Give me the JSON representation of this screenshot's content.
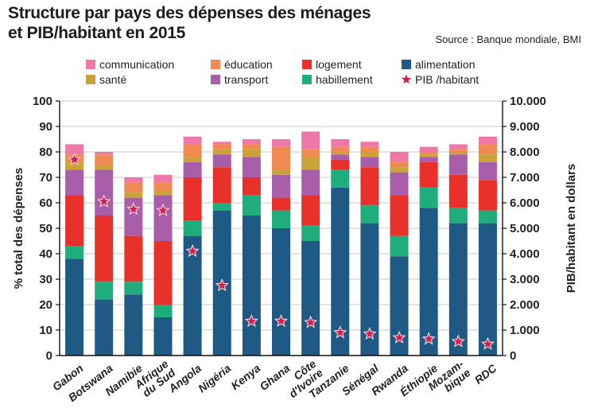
{
  "title_line1": "Structure par pays des dépenses des ménages",
  "title_line2": "et PIB/habitant en 2015",
  "source": "Source : Banque mondiale, BMI",
  "chart_data": {
    "type": "bar",
    "stacked": true,
    "ylabel": "% total des dépenses",
    "y2label": "PIB/habitant en dollars",
    "ylim": [
      0,
      100
    ],
    "y2lim": [
      0,
      10000
    ],
    "yticks": [
      "0",
      "10",
      "20",
      "30",
      "40",
      "50",
      "60",
      "70",
      "80",
      "90",
      "100"
    ],
    "y2ticks": [
      "0",
      "1.000",
      "2.000",
      "3.000",
      "4.000",
      "5.000",
      "6.000",
      "7.000",
      "8.000",
      "9.000",
      "10.000"
    ],
    "grid": true,
    "categories": [
      [
        "Gabon"
      ],
      [
        "Botswana"
      ],
      [
        "Namibie"
      ],
      [
        "Afrique",
        "du Sud"
      ],
      [
        "Angola"
      ],
      [
        "Nigéria"
      ],
      [
        "Kenya"
      ],
      [
        "Ghana"
      ],
      [
        "Côte",
        "d'Ivoire"
      ],
      [
        "Tanzanie"
      ],
      [
        "Sénégal"
      ],
      [
        "Rwanda"
      ],
      [
        "Éthiopie"
      ],
      [
        "Mozam-",
        "bique"
      ],
      [
        "RDC"
      ]
    ],
    "series": [
      {
        "name": "alimentation",
        "color": "#1f5a85",
        "values": [
          38,
          22,
          24,
          15,
          47,
          57,
          55,
          50,
          45,
          66,
          52,
          39,
          58,
          52,
          52
        ]
      },
      {
        "name": "habillement",
        "color": "#1fad7e",
        "values": [
          5,
          7,
          5,
          5,
          6,
          3,
          8,
          7,
          6,
          7,
          7,
          8,
          8,
          6,
          5
        ]
      },
      {
        "name": "logement",
        "color": "#e8312b",
        "values": [
          20,
          26,
          18,
          25,
          17,
          14,
          7,
          5,
          12,
          4,
          15,
          16,
          10,
          13,
          12
        ]
      },
      {
        "name": "transport",
        "color": "#a85ea9",
        "values": [
          10,
          18,
          15,
          18,
          6,
          5,
          8,
          9,
          10,
          2,
          4,
          9,
          2,
          8,
          7
        ]
      },
      {
        "name": "santé",
        "color": "#c9a339",
        "values": [
          3,
          2,
          2,
          2,
          2,
          2,
          3,
          2,
          5,
          1,
          2,
          2,
          1,
          1,
          3
        ]
      },
      {
        "name": "éducation",
        "color": "#f08a52",
        "values": [
          3,
          4,
          4,
          3,
          5,
          2,
          2,
          9,
          3,
          2,
          2,
          2,
          1,
          1,
          4
        ]
      },
      {
        "name": "communication",
        "color": "#ee78a8",
        "values": [
          4,
          1,
          2,
          3,
          3,
          1,
          2,
          3,
          7,
          3,
          2,
          4,
          2,
          2,
          3
        ]
      }
    ],
    "gdp_series": {
      "name": "PIB /habitant",
      "color": "#d01f4e",
      "axis": "right",
      "values": [
        7700,
        6050,
        5750,
        5700,
        4100,
        2750,
        1350,
        1350,
        1300,
        900,
        850,
        700,
        650,
        550,
        450
      ]
    },
    "legend": [
      [
        "communication",
        "éducation",
        "logement",
        "alimentation"
      ],
      [
        "santé",
        "transport",
        "habillement",
        "PIB /habitant"
      ]
    ]
  }
}
